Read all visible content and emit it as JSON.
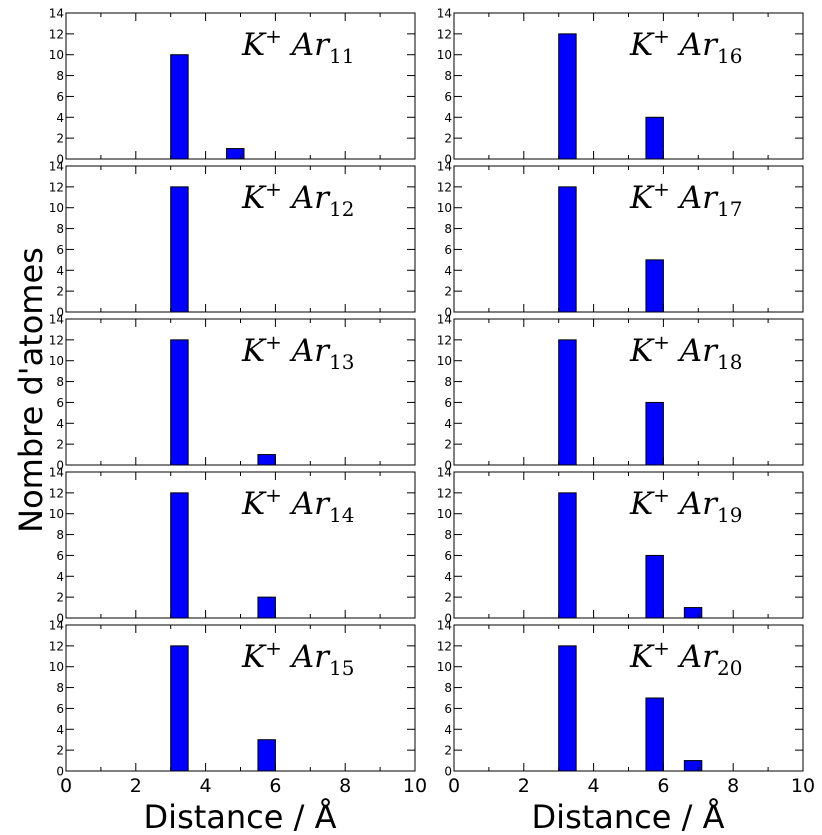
{
  "figure": {
    "ylabel": "Nombre d'atomes",
    "xlabel_left": "Distance / Å",
    "xlabel_right": "Distance / Å"
  },
  "colors": {
    "bar_fill": "#0000ff",
    "bar_stroke": "#000000"
  },
  "chart_data": [
    {
      "type": "bar",
      "label": "K+ Ar11",
      "label_parts": [
        "K",
        "+",
        " Ar",
        "11"
      ],
      "column": 0,
      "row": 0,
      "bin_width": 0.5,
      "bars": [
        {
          "x": 3.0,
          "value": 10
        },
        {
          "x": 4.6,
          "value": 1
        }
      ],
      "xlim": [
        0,
        10
      ],
      "ylim": [
        0,
        14
      ],
      "yticks": [
        0,
        2,
        4,
        6,
        8,
        10,
        12,
        14
      ],
      "xticks": [
        0,
        2,
        4,
        6,
        8,
        10
      ]
    },
    {
      "type": "bar",
      "label": "K+ Ar12",
      "label_parts": [
        "K",
        "+",
        " Ar",
        "12"
      ],
      "column": 0,
      "row": 1,
      "bin_width": 0.5,
      "bars": [
        {
          "x": 3.0,
          "value": 12
        }
      ],
      "xlim": [
        0,
        10
      ],
      "ylim": [
        0,
        14
      ],
      "yticks": [
        0,
        2,
        4,
        6,
        8,
        10,
        12,
        14
      ],
      "xticks": [
        0,
        2,
        4,
        6,
        8,
        10
      ]
    },
    {
      "type": "bar",
      "label": "K+ Ar13",
      "label_parts": [
        "K",
        "+",
        " Ar",
        "13"
      ],
      "column": 0,
      "row": 2,
      "bin_width": 0.5,
      "bars": [
        {
          "x": 3.0,
          "value": 12
        },
        {
          "x": 5.5,
          "value": 1
        }
      ],
      "xlim": [
        0,
        10
      ],
      "ylim": [
        0,
        14
      ],
      "yticks": [
        0,
        2,
        4,
        6,
        8,
        10,
        12,
        14
      ],
      "xticks": [
        0,
        2,
        4,
        6,
        8,
        10
      ]
    },
    {
      "type": "bar",
      "label": "K+ Ar14",
      "label_parts": [
        "K",
        "+",
        " Ar",
        "14"
      ],
      "column": 0,
      "row": 3,
      "bin_width": 0.5,
      "bars": [
        {
          "x": 3.0,
          "value": 12
        },
        {
          "x": 5.5,
          "value": 2
        }
      ],
      "xlim": [
        0,
        10
      ],
      "ylim": [
        0,
        14
      ],
      "yticks": [
        0,
        2,
        4,
        6,
        8,
        10,
        12,
        14
      ],
      "xticks": [
        0,
        2,
        4,
        6,
        8,
        10
      ]
    },
    {
      "type": "bar",
      "label": "K+ Ar15",
      "label_parts": [
        "K",
        "+",
        " Ar",
        "15"
      ],
      "column": 0,
      "row": 4,
      "bin_width": 0.5,
      "bars": [
        {
          "x": 3.0,
          "value": 12
        },
        {
          "x": 5.5,
          "value": 3
        }
      ],
      "xlim": [
        0,
        10
      ],
      "ylim": [
        0,
        14
      ],
      "yticks": [
        0,
        2,
        4,
        6,
        8,
        10,
        12,
        14
      ],
      "xticks": [
        0,
        2,
        4,
        6,
        8,
        10
      ]
    },
    {
      "type": "bar",
      "label": "K+ Ar16",
      "label_parts": [
        "K",
        "+",
        " Ar",
        "16"
      ],
      "column": 1,
      "row": 0,
      "bin_width": 0.5,
      "bars": [
        {
          "x": 3.0,
          "value": 12
        },
        {
          "x": 5.5,
          "value": 4
        }
      ],
      "xlim": [
        0,
        10
      ],
      "ylim": [
        0,
        14
      ],
      "yticks": [
        0,
        2,
        4,
        6,
        8,
        10,
        12,
        14
      ],
      "xticks": [
        0,
        2,
        4,
        6,
        8,
        10
      ]
    },
    {
      "type": "bar",
      "label": "K+ Ar17",
      "label_parts": [
        "K",
        "+",
        " Ar",
        "17"
      ],
      "column": 1,
      "row": 1,
      "bin_width": 0.5,
      "bars": [
        {
          "x": 3.0,
          "value": 12
        },
        {
          "x": 5.5,
          "value": 5
        }
      ],
      "xlim": [
        0,
        10
      ],
      "ylim": [
        0,
        14
      ],
      "yticks": [
        0,
        2,
        4,
        6,
        8,
        10,
        12,
        14
      ],
      "xticks": [
        0,
        2,
        4,
        6,
        8,
        10
      ]
    },
    {
      "type": "bar",
      "label": "K+ Ar18",
      "label_parts": [
        "K",
        "+",
        " Ar",
        "18"
      ],
      "column": 1,
      "row": 2,
      "bin_width": 0.5,
      "bars": [
        {
          "x": 3.0,
          "value": 12
        },
        {
          "x": 5.5,
          "value": 6
        }
      ],
      "xlim": [
        0,
        10
      ],
      "ylim": [
        0,
        14
      ],
      "yticks": [
        0,
        2,
        4,
        6,
        8,
        10,
        12,
        14
      ],
      "xticks": [
        0,
        2,
        4,
        6,
        8,
        10
      ]
    },
    {
      "type": "bar",
      "label": "K+ Ar19",
      "label_parts": [
        "K",
        "+",
        " Ar",
        "19"
      ],
      "column": 1,
      "row": 3,
      "bin_width": 0.5,
      "bars": [
        {
          "x": 3.0,
          "value": 12
        },
        {
          "x": 5.5,
          "value": 6
        },
        {
          "x": 6.6,
          "value": 1
        }
      ],
      "xlim": [
        0,
        10
      ],
      "ylim": [
        0,
        14
      ],
      "yticks": [
        0,
        2,
        4,
        6,
        8,
        10,
        12,
        14
      ],
      "xticks": [
        0,
        2,
        4,
        6,
        8,
        10
      ]
    },
    {
      "type": "bar",
      "label": "K+ Ar20",
      "label_parts": [
        "K",
        "+",
        " Ar",
        "20"
      ],
      "column": 1,
      "row": 4,
      "bin_width": 0.5,
      "bars": [
        {
          "x": 3.0,
          "value": 12
        },
        {
          "x": 5.5,
          "value": 7
        },
        {
          "x": 6.6,
          "value": 1
        }
      ],
      "xlim": [
        0,
        10
      ],
      "ylim": [
        0,
        14
      ],
      "yticks": [
        0,
        2,
        4,
        6,
        8,
        10,
        12,
        14
      ],
      "xticks": [
        0,
        2,
        4,
        6,
        8,
        10
      ]
    }
  ]
}
